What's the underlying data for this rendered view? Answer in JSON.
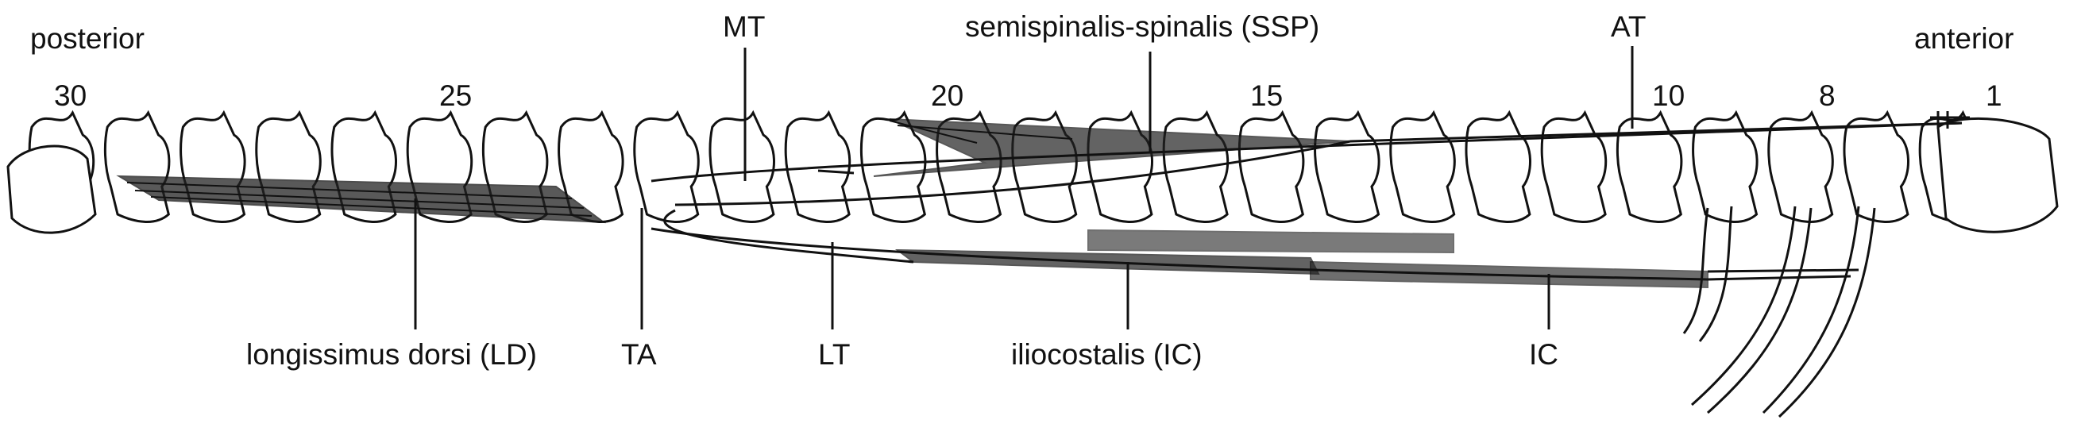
{
  "orientation": {
    "left": "posterior",
    "right": "anterior"
  },
  "vertebra_numbers": [
    "30",
    "25",
    "20",
    "15",
    "10",
    "8",
    "1"
  ],
  "top_labels": {
    "mt": "MT",
    "ssp": "semispinalis-spinalis (SSP)",
    "at": "AT"
  },
  "bottom_labels": {
    "ld": "longissimus dorsi (LD)",
    "ta": "TA",
    "lt": "LT",
    "ic_full": "iliocostalis (IC)",
    "ic": "IC"
  }
}
